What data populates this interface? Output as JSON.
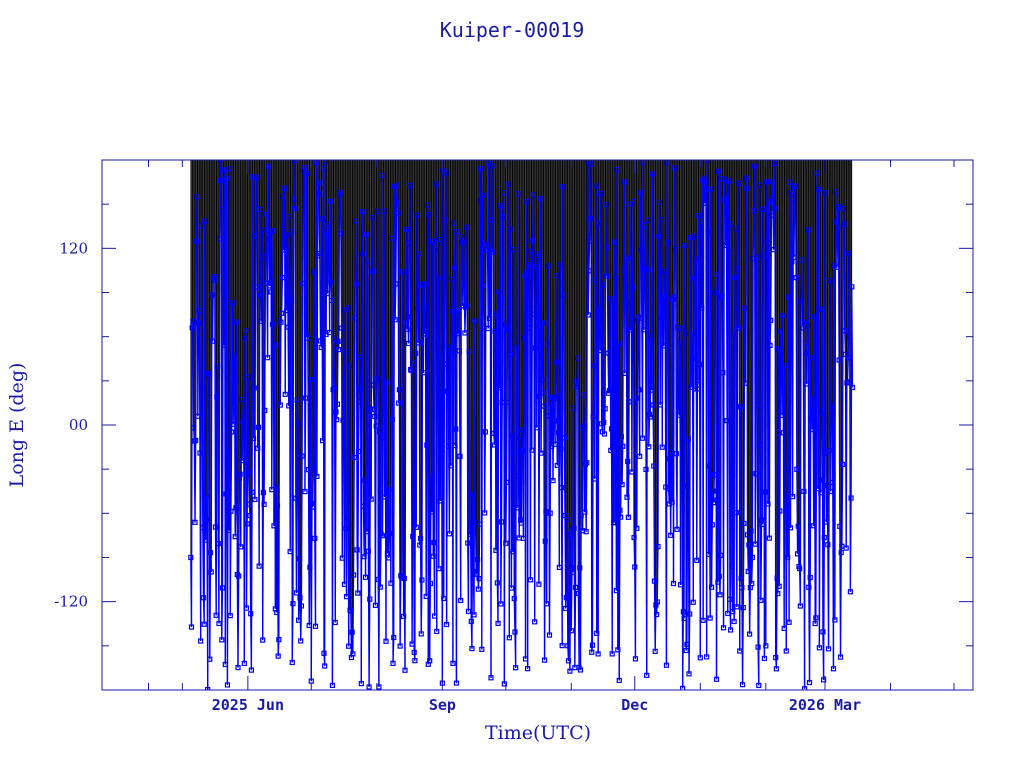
{
  "chart_data": {
    "type": "scatter",
    "title": "Kuiper-00019",
    "xlabel": "Time(UTC)",
    "ylabel": "Long E (deg)",
    "ylim": [
      -180,
      180
    ],
    "xlim": [
      "2025-03-24",
      "2026-05-10"
    ],
    "yticks": [
      {
        "value": 120,
        "label": "120"
      },
      {
        "value": 0,
        "label": "00"
      },
      {
        "value": -120,
        "label": "-120"
      }
    ],
    "xticks": [
      {
        "value": "2025-06-01",
        "label": "2025 Jun"
      },
      {
        "value": "2025-09-01",
        "label": "Sep"
      },
      {
        "value": "2025-12-01",
        "label": "Dec"
      },
      {
        "value": "2026-03-01",
        "label": "2026 Mar"
      }
    ],
    "data_range": {
      "start": "2025-05-05",
      "end": "2026-03-14"
    },
    "samples_per_day": 3,
    "series": [
      {
        "name": "",
        "color": "#0000ff",
        "marker": "square",
        "description": "ground-track longitude wrapping between -180 and 180 deg"
      }
    ]
  },
  "colors": {
    "axis": "#1a1aa8",
    "data": "#0000ff",
    "trace": "#000000"
  }
}
